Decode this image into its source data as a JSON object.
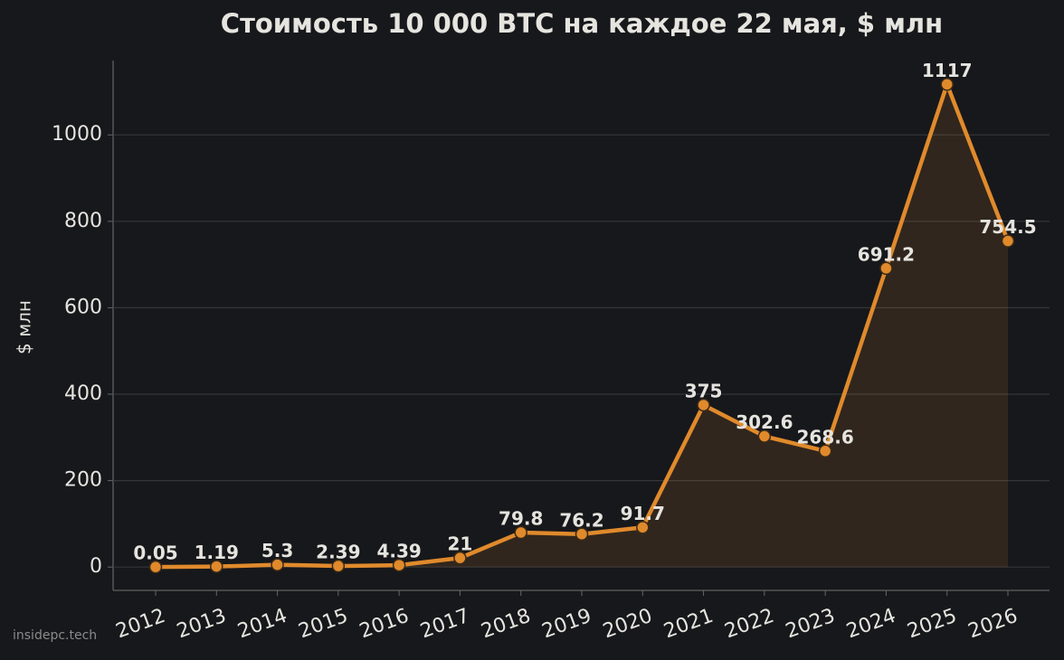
{
  "chart_data": {
    "type": "line",
    "title": "Стоимость 10 000 BTC на каждое 22 мая, $ млн",
    "y_label": "$ млн",
    "watermark": "insidepc.tech",
    "categories": [
      "2012",
      "2013",
      "2014",
      "2015",
      "2016",
      "2017",
      "2018",
      "2019",
      "2020",
      "2021",
      "2022",
      "2023",
      "2024",
      "2025",
      "2026"
    ],
    "values": [
      0.05,
      1.19,
      5.3,
      2.39,
      4.39,
      21,
      79.8,
      76.2,
      91.7,
      375,
      302.6,
      268.6,
      691.2,
      1117,
      754.5
    ],
    "color": "#e08a2c",
    "area": true,
    "ylim": [
      -54,
      1172
    ],
    "yticks": [
      0,
      200,
      400,
      600,
      800,
      1000
    ],
    "grid": true
  }
}
